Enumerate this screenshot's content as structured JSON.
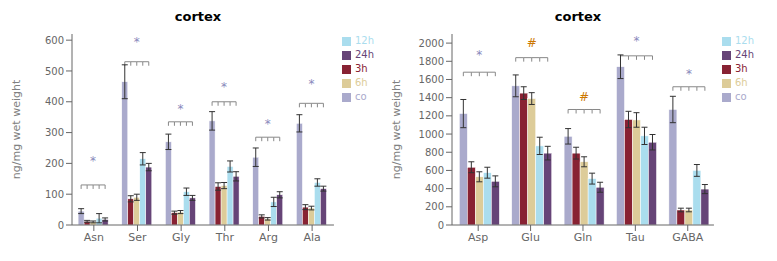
{
  "chart_data": [
    {
      "type": "bar",
      "title": "cortex",
      "ylabel": "ng/mg wet weight",
      "categories": [
        "Asn",
        "Ser",
        "Gly",
        "Thr",
        "Arg",
        "Ala"
      ],
      "ylim": [
        0,
        620
      ],
      "yticks": [
        0,
        100,
        200,
        300,
        400,
        500,
        600
      ],
      "legend": "upper right",
      "series": [
        {
          "name": "co",
          "color": "#aaaacc",
          "values": [
            45,
            465,
            270,
            338,
            220,
            330
          ],
          "errors": [
            8,
            55,
            25,
            30,
            30,
            28
          ]
        },
        {
          "name": "3h",
          "color": "#882233",
          "values": [
            12,
            85,
            40,
            125,
            28,
            58
          ],
          "errors": [
            3,
            10,
            5,
            12,
            5,
            8
          ]
        },
        {
          "name": "6h",
          "color": "#ddcc99",
          "values": [
            10,
            90,
            42,
            128,
            20,
            55
          ],
          "errors": [
            3,
            10,
            5,
            10,
            4,
            6
          ]
        },
        {
          "name": "12h",
          "color": "#aaddee",
          "values": [
            22,
            215,
            108,
            190,
            75,
            138
          ],
          "errors": [
            15,
            20,
            12,
            18,
            15,
            12
          ]
        },
        {
          "name": "24h",
          "color": "#664477",
          "values": [
            18,
            188,
            88,
            158,
            98,
            118
          ],
          "errors": [
            5,
            12,
            8,
            15,
            10,
            8
          ]
        }
      ],
      "annotations": [
        {
          "category": "Asn",
          "text": "*",
          "y": 195,
          "bracket_y": 130,
          "color": "#8888bb"
        },
        {
          "category": "Ser",
          "text": "*",
          "y": 580,
          "bracket_y": 530,
          "color": "#8888bb"
        },
        {
          "category": "Gly",
          "text": "*",
          "y": 365,
          "bracket_y": 335,
          "color": "#8888bb"
        },
        {
          "category": "Thr",
          "text": "*",
          "y": 435,
          "bracket_y": 400,
          "color": "#8888bb"
        },
        {
          "category": "Arg",
          "text": "*",
          "y": 315,
          "bracket_y": 285,
          "color": "#8888bb"
        },
        {
          "category": "Ala",
          "text": "*",
          "y": 445,
          "bracket_y": 395,
          "color": "#8888bb"
        }
      ]
    },
    {
      "type": "bar",
      "title": "cortex",
      "ylabel": "ng/mg wet weight",
      "categories": [
        "Asp",
        "Glu",
        "Gln",
        "Tau",
        "GABA"
      ],
      "ylim": [
        0,
        2100
      ],
      "yticks": [
        0,
        200,
        400,
        600,
        800,
        1000,
        1200,
        1400,
        1600,
        1800,
        2000
      ],
      "legend": "upper right",
      "series": [
        {
          "name": "co",
          "color": "#aaaacc",
          "values": [
            1225,
            1530,
            975,
            1740,
            1270
          ],
          "errors": [
            155,
            120,
            85,
            130,
            145
          ]
        },
        {
          "name": "3h",
          "color": "#882233",
          "values": [
            635,
            1450,
            790,
            1160,
            165
          ],
          "errors": [
            60,
            70,
            65,
            90,
            20
          ]
        },
        {
          "name": "6h",
          "color": "#ddcc99",
          "values": [
            530,
            1390,
            695,
            1155,
            165
          ],
          "errors": [
            55,
            65,
            55,
            80,
            20
          ]
        },
        {
          "name": "12h",
          "color": "#aaddee",
          "values": [
            575,
            870,
            510,
            980,
            600
          ],
          "errors": [
            60,
            95,
            60,
            95,
            65
          ]
        },
        {
          "name": "24h",
          "color": "#664477",
          "values": [
            480,
            790,
            415,
            910,
            395
          ],
          "errors": [
            60,
            75,
            55,
            85,
            50
          ]
        }
      ],
      "annotations": [
        {
          "category": "Asp",
          "text": "*",
          "y": 1820,
          "bracket_y": 1680,
          "color": "#8888bb"
        },
        {
          "category": "Glu",
          "text": "#",
          "y": 1960,
          "bracket_y": 1840,
          "color": "#cc7700"
        },
        {
          "category": "Gln",
          "text": "#",
          "y": 1360,
          "bracket_y": 1270,
          "color": "#cc7700"
        },
        {
          "category": "Tau",
          "text": "*",
          "y": 1980,
          "bracket_y": 1860,
          "color": "#8888bb"
        },
        {
          "category": "GABA",
          "text": "*",
          "y": 1620,
          "bracket_y": 1520,
          "color": "#8888bb"
        }
      ]
    }
  ]
}
